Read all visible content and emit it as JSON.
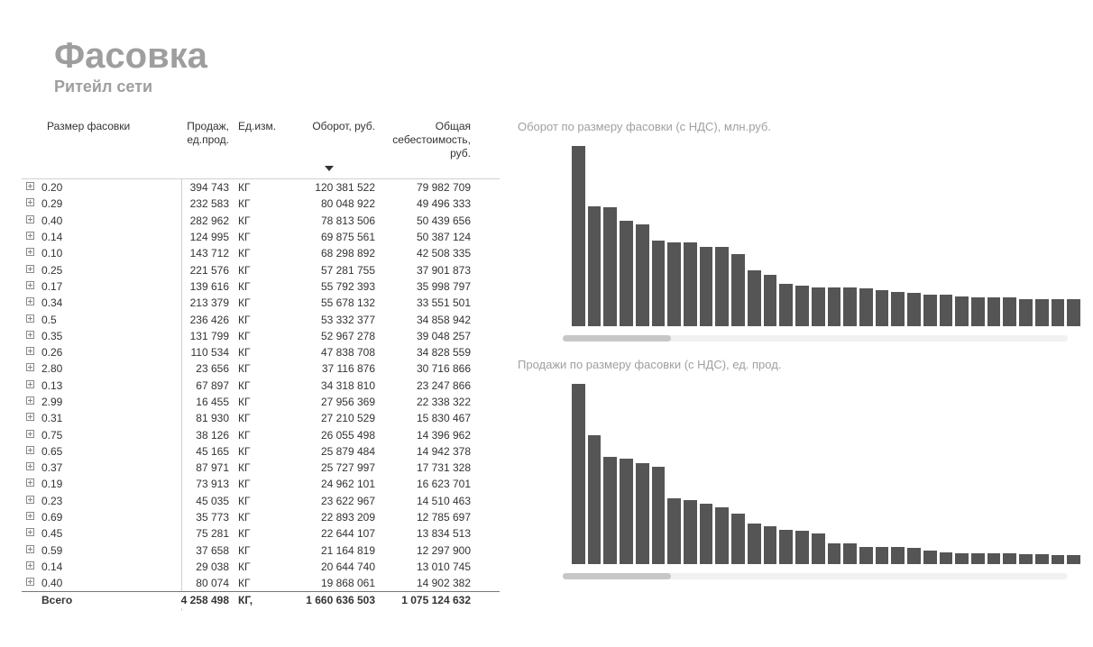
{
  "header": {
    "title": "Фасовка",
    "subtitle": "Ритейл сети"
  },
  "table": {
    "columns": {
      "size": "Размер фасовки",
      "sales": "Продаж, ед.прод.",
      "unit": "Ед.изм.",
      "turnover": "Оборот, руб.",
      "cost": "Общая себестоимость, руб."
    },
    "sort_column": "turnover",
    "rows": [
      {
        "size": "0.20",
        "sales": "394 743",
        "unit": "КГ",
        "turn": "120 381 522",
        "cost": "79 982 709"
      },
      {
        "size": "0.29",
        "sales": "232 583",
        "unit": "КГ",
        "turn": "80 048 922",
        "cost": "49 496 333"
      },
      {
        "size": "0.40",
        "sales": "282 962",
        "unit": "КГ",
        "turn": "78 813 506",
        "cost": "50 439 656"
      },
      {
        "size": "0.14",
        "sales": "124 995",
        "unit": "КГ",
        "turn": "69 875 561",
        "cost": "50 387 124"
      },
      {
        "size": "0.10",
        "sales": "143 712",
        "unit": "КГ",
        "turn": "68 298 892",
        "cost": "42 508 335"
      },
      {
        "size": "0.25",
        "sales": "221 576",
        "unit": "КГ",
        "turn": "57 281 755",
        "cost": "37 901 873"
      },
      {
        "size": "0.17",
        "sales": "139 616",
        "unit": "КГ",
        "turn": "55 792 393",
        "cost": "35 998 797"
      },
      {
        "size": "0.34",
        "sales": "213 379",
        "unit": "КГ",
        "turn": "55 678 132",
        "cost": "33 551 501"
      },
      {
        "size": "0.5",
        "sales": "236 426",
        "unit": "КГ",
        "turn": "53 332 377",
        "cost": "34 858 942"
      },
      {
        "size": "0.35",
        "sales": "131 799",
        "unit": "КГ",
        "turn": "52 967 278",
        "cost": "39 048 257"
      },
      {
        "size": "0.26",
        "sales": "110 534",
        "unit": "КГ",
        "turn": "47 838 708",
        "cost": "34 828 559"
      },
      {
        "size": "2.80",
        "sales": "23 656",
        "unit": "КГ",
        "turn": "37 116 876",
        "cost": "30 716 866"
      },
      {
        "size": "0.13",
        "sales": "67 897",
        "unit": "КГ",
        "turn": "34 318 810",
        "cost": "23 247 866"
      },
      {
        "size": "2.99",
        "sales": "16 455",
        "unit": "КГ",
        "turn": "27 956 369",
        "cost": "22 338 322"
      },
      {
        "size": "0.31",
        "sales": "81 930",
        "unit": "КГ",
        "turn": "27 210 529",
        "cost": "15 830 467"
      },
      {
        "size": "0.75",
        "sales": "38 126",
        "unit": "КГ",
        "turn": "26 055 498",
        "cost": "14 396 962"
      },
      {
        "size": "0.65",
        "sales": "45 165",
        "unit": "КГ",
        "turn": "25 879 484",
        "cost": "14 942 378"
      },
      {
        "size": "0.37",
        "sales": "87 971",
        "unit": "КГ",
        "turn": "25 727 997",
        "cost": "17 731 328"
      },
      {
        "size": "0.19",
        "sales": "73 913",
        "unit": "КГ",
        "turn": "24 962 101",
        "cost": "16 623 701"
      },
      {
        "size": "0.23",
        "sales": "45 035",
        "unit": "КГ",
        "turn": "23 622 967",
        "cost": "14 510 463"
      },
      {
        "size": "0.69",
        "sales": "35 773",
        "unit": "КГ",
        "turn": "22 893 209",
        "cost": "12 785 697"
      },
      {
        "size": "0.45",
        "sales": "75 281",
        "unit": "КГ",
        "turn": "22 644 107",
        "cost": "13 834 513"
      },
      {
        "size": "0.59",
        "sales": "37 658",
        "unit": "КГ",
        "turn": "21 164 819",
        "cost": "12 297 900"
      },
      {
        "size": "0.14",
        "sales": "29 038",
        "unit": "КГ",
        "turn": "20 644 740",
        "cost": "13 010 745"
      },
      {
        "size": "0.40",
        "sales": "80 074",
        "unit": "КГ",
        "turn": "19 868 061",
        "cost": "14 902 382"
      }
    ],
    "total": {
      "label": "Всего",
      "sales": "4 258 498",
      "unit": "КГ,",
      "turn": "1 660 636 503",
      "cost": "1 075 124 632"
    }
  },
  "charts": {
    "chart1": {
      "title": "Оборот по размеру фасовки (с НДС), млн.руб.",
      "type": "bar",
      "bar_color": "#555555",
      "background_color": "#ffffff",
      "values": [
        120,
        80,
        79,
        70,
        68,
        57,
        56,
        56,
        53,
        53,
        48,
        37,
        34,
        28,
        27,
        26,
        26,
        26,
        25,
        24,
        23,
        22,
        21,
        21,
        20,
        19,
        19,
        19,
        18,
        18,
        18,
        18
      ]
    },
    "chart2": {
      "title": "Продажи по размеру фасовки (с НДС), ед. прод.",
      "type": "bar",
      "bar_color": "#555555",
      "background_color": "#ffffff",
      "values": [
        395,
        283,
        236,
        232,
        222,
        213,
        144,
        140,
        132,
        125,
        111,
        88,
        82,
        76,
        74,
        68,
        45,
        45,
        38,
        38,
        37,
        36,
        29,
        25,
        24,
        24,
        23,
        23,
        21,
        21,
        20,
        20
      ]
    }
  },
  "colors": {
    "title_gray": "#9e9e9e",
    "text": "#333333",
    "bar": "#555555",
    "border": "#d0d0d0",
    "scroll_track": "#f1f1f1",
    "scroll_thumb": "#c7c7c7"
  }
}
